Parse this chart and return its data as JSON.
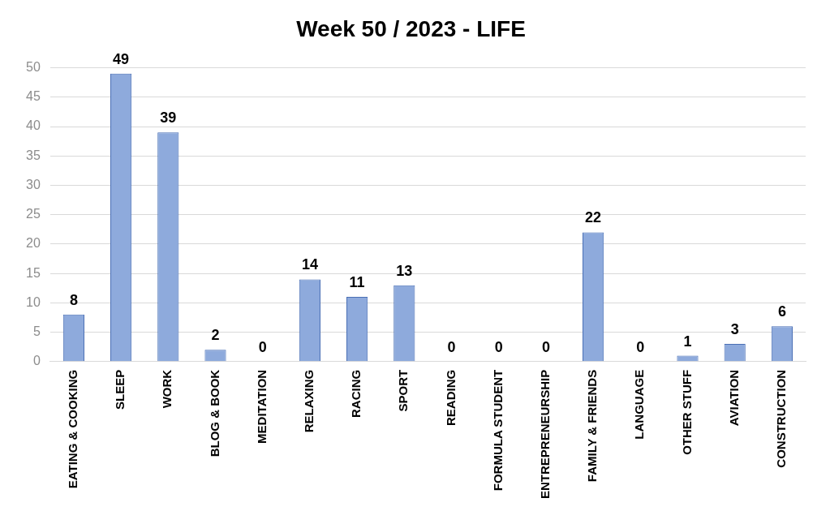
{
  "chart_data": {
    "type": "bar",
    "title": "Week 50 / 2023 - LIFE",
    "categories": [
      "EATING & COOKING",
      "SLEEP",
      "WORK",
      "BLOG & BOOK",
      "MEDITATION",
      "RELAXING",
      "RACING",
      "SPORT",
      "READING",
      "FORMULA STUDENT",
      "ENTREPRENEURSHIP",
      "FAMILY & FRIENDS",
      "LANGUAGE",
      "OTHER STUFF",
      "AVIATION",
      "CONSTRUCTION"
    ],
    "values": [
      8,
      49,
      39,
      2,
      0,
      14,
      11,
      13,
      0,
      0,
      0,
      22,
      0,
      1,
      3,
      6
    ],
    "color": "#8eaadc",
    "ylim": [
      0,
      50
    ],
    "yticks": [
      0,
      5,
      10,
      15,
      20,
      25,
      30,
      35,
      40,
      45,
      50
    ],
    "grid": "y",
    "legend": false,
    "data_labels": true
  }
}
